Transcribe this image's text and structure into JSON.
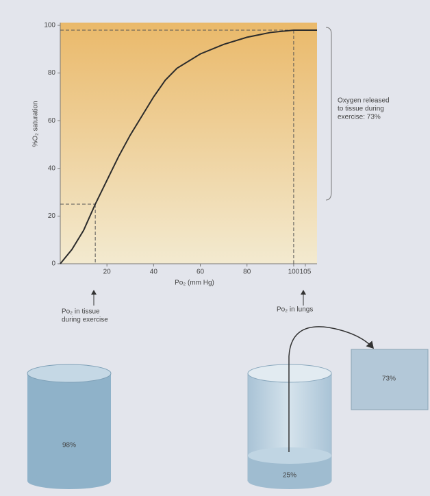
{
  "chart_data": {
    "type": "line",
    "ylabel": "%O₂ saturation",
    "xlabel": "Po₂ (mm Hg)",
    "xlim": [
      0,
      110
    ],
    "ylim": [
      0,
      100
    ],
    "xticks": [
      20,
      40,
      60,
      80,
      100,
      105
    ],
    "yticks": [
      0,
      20,
      40,
      60,
      80,
      100
    ],
    "series": [
      {
        "color": "#2b2b2b",
        "x": [
          0,
          5,
          10,
          15,
          20,
          25,
          30,
          35,
          40,
          45,
          50,
          60,
          70,
          80,
          90,
          100,
          110
        ],
        "values": [
          0,
          6,
          14,
          25,
          35,
          45,
          54,
          62,
          70,
          77,
          82,
          88,
          92,
          95,
          97,
          98,
          98
        ]
      }
    ],
    "reference_points": [
      {
        "x": 15,
        "y": 25
      },
      {
        "x": 100,
        "y": 98
      }
    ],
    "bracket_label": [
      "Oxygen released",
      "to tissue during",
      "exercise: 73%"
    ],
    "tissue_label": [
      "Po₂ in tissue",
      "during exercise"
    ],
    "lungs_label": [
      "Po₂ in lungs"
    ]
  },
  "illustration": {
    "full_cylinder": "98%",
    "exercise_cylinder": "25%",
    "released_box": "73%"
  }
}
